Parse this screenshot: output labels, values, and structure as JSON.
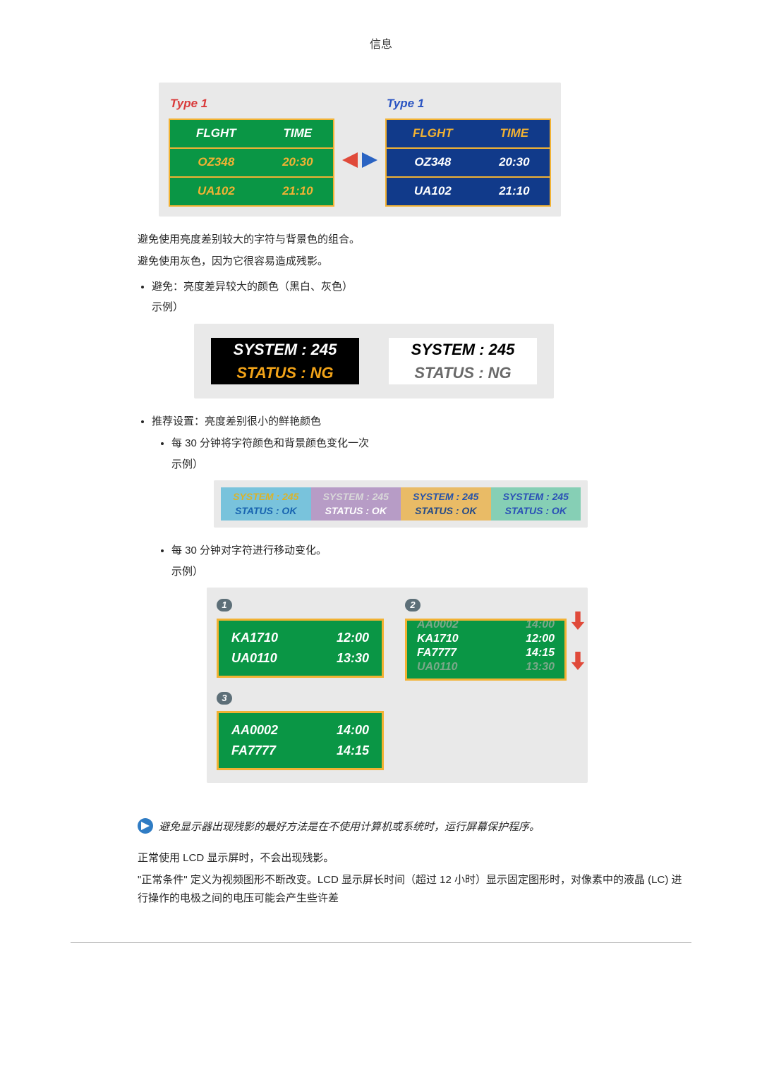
{
  "header": {
    "title": "信息"
  },
  "figA": {
    "type_label": "Type 1",
    "headers": [
      "FLGHT",
      "TIME"
    ],
    "rows": [
      [
        "OZ348",
        "20:30"
      ],
      [
        "UA102",
        "21:10"
      ]
    ],
    "left": {
      "label_color": "#d93a3a",
      "table_bg": "#0a9645",
      "border": "#f2b233",
      "header_bg": "#0a9645",
      "header_color": "#ffffff",
      "cell_color": "#f2b233"
    },
    "right": {
      "label_color": "#2a54c2",
      "table_bg": "#113a8a",
      "border": "#f2b233",
      "header_bg": "#113a8a",
      "header_color": "#f2b233",
      "cell_color": "#ffffff"
    },
    "arrow_left_color": "#e04a3a",
    "arrow_right_color": "#2a63c2"
  },
  "body": {
    "p1": "避免使用亮度差别较大的字符与背景色的组合。",
    "p2": "避免使用灰色，因为它很容易造成残影。",
    "avoid_item": "避免：亮度差异较大的颜色（黑白、灰色）",
    "example_label": "示例）",
    "rec_item": "推荐设置：亮度差别很小的鲜艳颜色",
    "rec_sub1": "每 30 分钟将字符颜色和背景颜色变化一次",
    "rec_sub2": "每 30 分钟对字符进行移动变化。",
    "note": "避免显示器出现残影的最好方法是在不使用计算机或系统时，运行屏幕保护程序。",
    "p3": "正常使用 LCD 显示屏时，不会出现残影。",
    "p4": "\"正常条件\" 定义为视频图形不断改变。LCD 显示屏长时间（超过 12 小时）显示固定图形时，对像素中的液晶 (LC) 进行操作的电极之间的电压可能会产生些许差"
  },
  "figB": {
    "line1": "SYSTEM : 245",
    "line2": "STATUS : NG",
    "left": {
      "bg": "#000000",
      "line1_color": "#ffffff",
      "line2_color": "#f2a318"
    },
    "right": {
      "bg": "#ffffff",
      "line1_color": "#000000",
      "line2_color": "#6a6a6a"
    }
  },
  "figC": {
    "line1": "SYSTEM : 245",
    "line2": "STATUS : OK",
    "panels": [
      {
        "bg": "#79c3dc",
        "line1_color": "#d9b32a",
        "line2_color": "#1763b0"
      },
      {
        "bg": "#b79cc6",
        "line1_color": "#d9d9d9",
        "line2_color": "#ffffff"
      },
      {
        "bg": "#e9bb66",
        "line1_color": "#2452aa",
        "line2_color": "#244a87"
      },
      {
        "bg": "#86cfb5",
        "line1_color": "#2a4fb6",
        "line2_color": "#2a4fb6"
      }
    ]
  },
  "figD": {
    "badge_bg": "#5d6f78",
    "board_bg": "#0a9645",
    "board_border": "#f2b233",
    "board_text": "#ffffff",
    "num1": "1",
    "num2": "2",
    "num3": "3",
    "board1_rows": [
      [
        "KA1710",
        "12:00"
      ],
      [
        "UA0110",
        "13:30"
      ]
    ],
    "board3_rows": [
      [
        "AA0002",
        "14:00"
      ],
      [
        "FA7777",
        "14:15"
      ]
    ],
    "scroll_rows": [
      [
        "AA0002",
        "14:00"
      ],
      [
        "KA1710",
        "12:00"
      ],
      [
        "FA7777",
        "14:15"
      ],
      [
        "UA0110",
        "13:30"
      ]
    ],
    "scroll_fade": "#7aa889",
    "arrow_color": "#e04a3a"
  },
  "noteIcon": {
    "bg": "#2f7cc4",
    "arrow": "#ffffff"
  }
}
